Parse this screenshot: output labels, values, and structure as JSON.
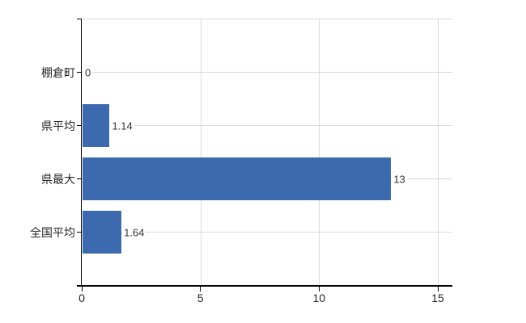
{
  "chart_data": {
    "type": "bar",
    "orientation": "horizontal",
    "title": "",
    "xlabel": "",
    "ylabel": "",
    "categories": [
      "棚倉町",
      "県平均",
      "県最大",
      "全国平均"
    ],
    "values": [
      0,
      1.14,
      13,
      1.64
    ],
    "value_labels": [
      "0",
      "1.14",
      "13",
      "1.64"
    ],
    "x_tick_labels": [
      "0",
      "5",
      "10",
      "15"
    ],
    "x_tick_values": [
      0,
      5,
      10,
      15
    ],
    "xlim": [
      0,
      15.6
    ],
    "grid": true,
    "legend": false,
    "colors": {
      "bar": "#3b6bae",
      "grid": "#d9d9d9",
      "axis": "#000000",
      "category_text": "#262626",
      "value_text": "#333333",
      "background": "#ffffff"
    }
  }
}
